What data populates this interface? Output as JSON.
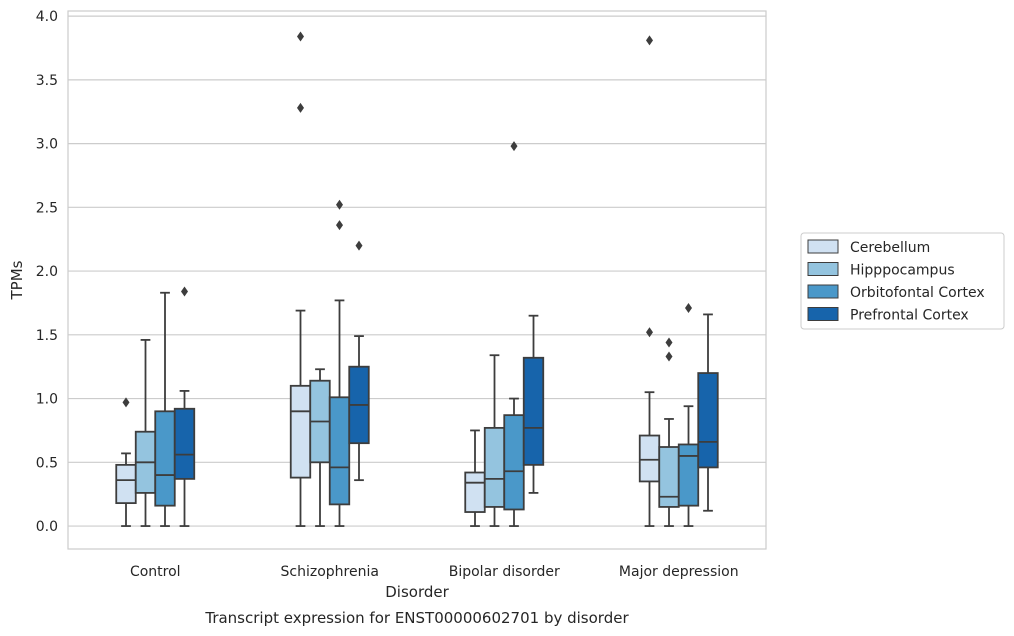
{
  "chart_data": {
    "type": "box",
    "title": "",
    "caption": "Transcript expression for ENST00000602701 by disorder",
    "xlabel": "Disorder",
    "ylabel": "TPMs",
    "ylim": [
      -0.18,
      4.04
    ],
    "yticks": [
      "0.0",
      "0.5",
      "1.0",
      "1.5",
      "2.0",
      "2.5",
      "3.0",
      "3.5",
      "4.0"
    ],
    "ytick_values": [
      0,
      0.5,
      1.0,
      1.5,
      2.0,
      2.5,
      3.0,
      3.5,
      4.0
    ],
    "grid": "horizontal",
    "legend_position": "right",
    "categories": [
      "Control",
      "Schizophrenia",
      "Bipolar disorder",
      "Major depression"
    ],
    "series": [
      {
        "name": "Cerebellum",
        "color": "#d0e1f2",
        "boxes": [
          {
            "whislo": 0.0,
            "q1": 0.18,
            "med": 0.36,
            "q3": 0.48,
            "whishi": 0.57,
            "fliers": [
              0.97
            ]
          },
          {
            "whislo": 0.0,
            "q1": 0.38,
            "med": 0.9,
            "q3": 1.1,
            "whishi": 1.69,
            "fliers": [
              3.84,
              3.28
            ]
          },
          {
            "whislo": 0.0,
            "q1": 0.11,
            "med": 0.34,
            "q3": 0.42,
            "whishi": 0.75,
            "fliers": []
          },
          {
            "whislo": 0.0,
            "q1": 0.35,
            "med": 0.52,
            "q3": 0.71,
            "whishi": 1.05,
            "fliers": [
              1.52,
              3.81
            ]
          }
        ]
      },
      {
        "name": "Hipppocampus",
        "color": "#94c4df",
        "boxes": [
          {
            "whislo": 0.0,
            "q1": 0.26,
            "med": 0.5,
            "q3": 0.74,
            "whishi": 1.46,
            "fliers": []
          },
          {
            "whislo": 0.0,
            "q1": 0.5,
            "med": 0.82,
            "q3": 1.14,
            "whishi": 1.23,
            "fliers": []
          },
          {
            "whislo": 0.0,
            "q1": 0.15,
            "med": 0.37,
            "q3": 0.77,
            "whishi": 1.34,
            "fliers": []
          },
          {
            "whislo": 0.0,
            "q1": 0.15,
            "med": 0.23,
            "q3": 0.62,
            "whishi": 0.84,
            "fliers": [
              1.44,
              1.33
            ]
          }
        ]
      },
      {
        "name": "Orbitofontal Cortex",
        "color": "#4a98c9",
        "boxes": [
          {
            "whislo": 0.0,
            "q1": 0.16,
            "med": 0.4,
            "q3": 0.9,
            "whishi": 1.83,
            "fliers": []
          },
          {
            "whislo": 0.0,
            "q1": 0.17,
            "med": 0.46,
            "q3": 1.01,
            "whishi": 1.77,
            "fliers": [
              2.52,
              2.36
            ]
          },
          {
            "whislo": 0.0,
            "q1": 0.13,
            "med": 0.43,
            "q3": 0.87,
            "whishi": 1.0,
            "fliers": [
              2.98
            ]
          },
          {
            "whislo": 0.0,
            "q1": 0.16,
            "med": 0.55,
            "q3": 0.64,
            "whishi": 0.94,
            "fliers": [
              1.71
            ]
          }
        ]
      },
      {
        "name": "Prefrontal Cortex",
        "color": "#1764ab",
        "boxes": [
          {
            "whislo": 0.0,
            "q1": 0.37,
            "med": 0.56,
            "q3": 0.92,
            "whishi": 1.06,
            "fliers": [
              1.84
            ]
          },
          {
            "whislo": 0.36,
            "q1": 0.65,
            "med": 0.95,
            "q3": 1.25,
            "whishi": 1.49,
            "fliers": [
              2.2
            ]
          },
          {
            "whislo": 0.26,
            "q1": 0.48,
            "med": 0.77,
            "q3": 1.32,
            "whishi": 1.65,
            "fliers": []
          },
          {
            "whislo": 0.12,
            "q1": 0.46,
            "med": 0.66,
            "q3": 1.2,
            "whishi": 1.66,
            "fliers": []
          }
        ]
      }
    ]
  }
}
